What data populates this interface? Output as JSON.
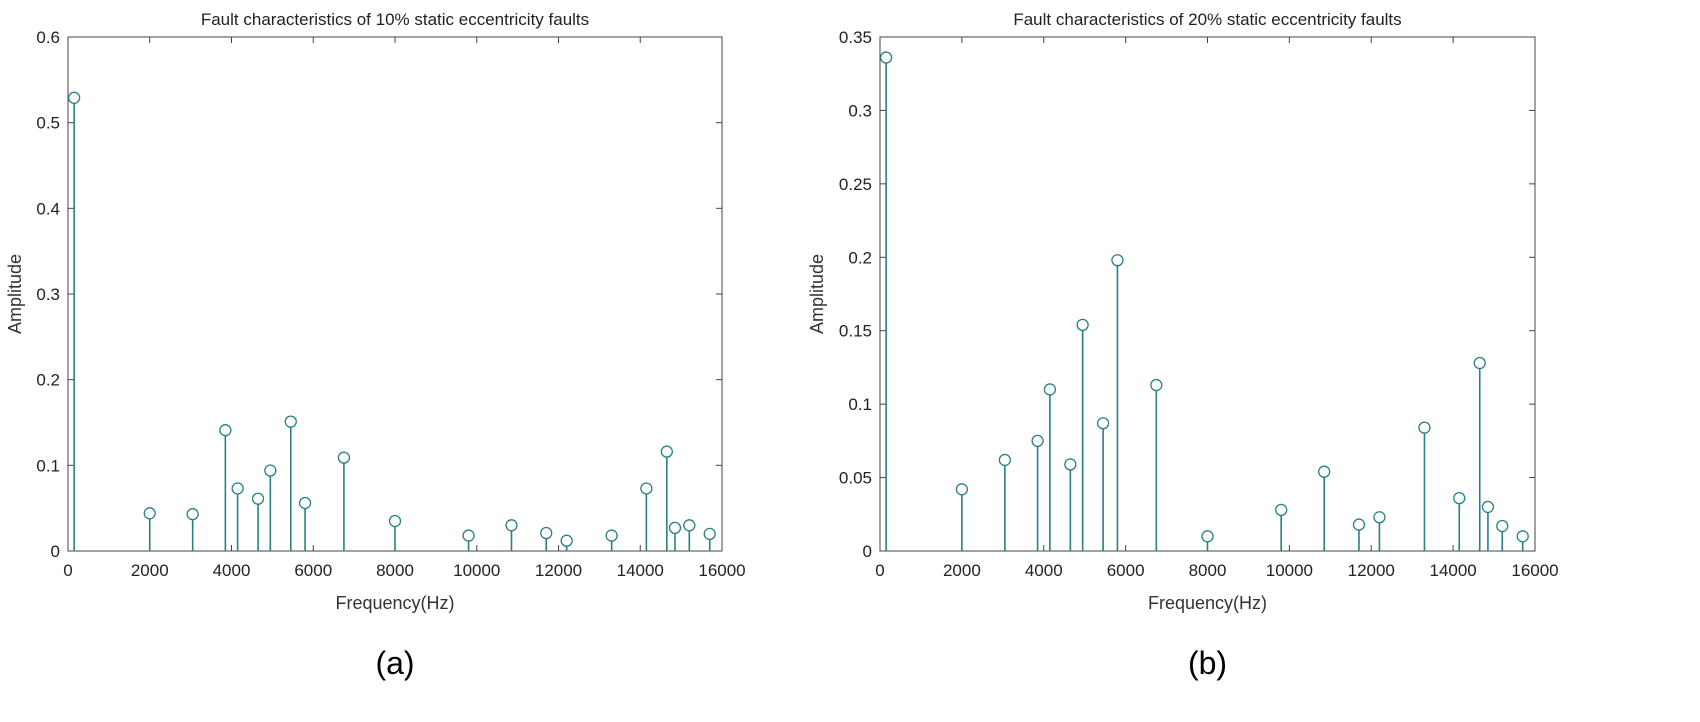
{
  "colors": {
    "stem": "#2a7f86",
    "axis": "#444444"
  },
  "chart_data": [
    {
      "type": "stem",
      "panel_label": "(a)",
      "title": "Fault characteristics of 10% static eccentricity faults",
      "xlabel": "Frequency(Hz)",
      "ylabel": "Amplitude",
      "xlim": [
        0,
        16000
      ],
      "ylim": [
        0,
        0.6
      ],
      "xticks": [
        0,
        2000,
        4000,
        6000,
        8000,
        10000,
        12000,
        14000,
        16000
      ],
      "yticks": [
        0,
        0.1,
        0.2,
        0.3,
        0.4,
        0.5,
        0.6
      ],
      "ytick_labels": [
        "0",
        "0.1",
        "0.2",
        "0.3",
        "0.4",
        "0.5",
        "0.6"
      ],
      "grid": false,
      "x": [
        150,
        2000,
        3050,
        3850,
        4150,
        4650,
        4950,
        5450,
        5800,
        6750,
        8000,
        9800,
        10850,
        11700,
        12200,
        13300,
        14150,
        14650,
        14850,
        15200,
        15700
      ],
      "y": [
        0.529,
        0.044,
        0.043,
        0.141,
        0.073,
        0.061,
        0.094,
        0.151,
        0.056,
        0.109,
        0.035,
        0.018,
        0.03,
        0.021,
        0.012,
        0.018,
        0.073,
        0.116,
        0.027,
        0.03,
        0.02
      ]
    },
    {
      "type": "stem",
      "panel_label": "(b)",
      "title": "Fault characteristics of 20% static eccentricity faults",
      "xlabel": "Frequency(Hz)",
      "ylabel": "Amplitude",
      "xlim": [
        0,
        16000
      ],
      "ylim": [
        0,
        0.35
      ],
      "xticks": [
        0,
        2000,
        4000,
        6000,
        8000,
        10000,
        12000,
        14000,
        16000
      ],
      "yticks": [
        0,
        0.05,
        0.1,
        0.15,
        0.2,
        0.25,
        0.3,
        0.35
      ],
      "ytick_labels": [
        "0",
        "0.05",
        "0.1",
        "0.15",
        "0.2",
        "0.25",
        "0.3",
        "0.35"
      ],
      "grid": false,
      "x": [
        150,
        2000,
        3050,
        3850,
        4150,
        4650,
        4950,
        5450,
        5800,
        6750,
        8000,
        9800,
        10850,
        11700,
        12200,
        13300,
        14150,
        14650,
        14850,
        15200,
        15700
      ],
      "y": [
        0.336,
        0.042,
        0.062,
        0.075,
        0.11,
        0.059,
        0.154,
        0.087,
        0.198,
        0.113,
        0.01,
        0.028,
        0.054,
        0.018,
        0.023,
        0.084,
        0.036,
        0.128,
        0.03,
        0.017,
        0.01
      ]
    }
  ]
}
